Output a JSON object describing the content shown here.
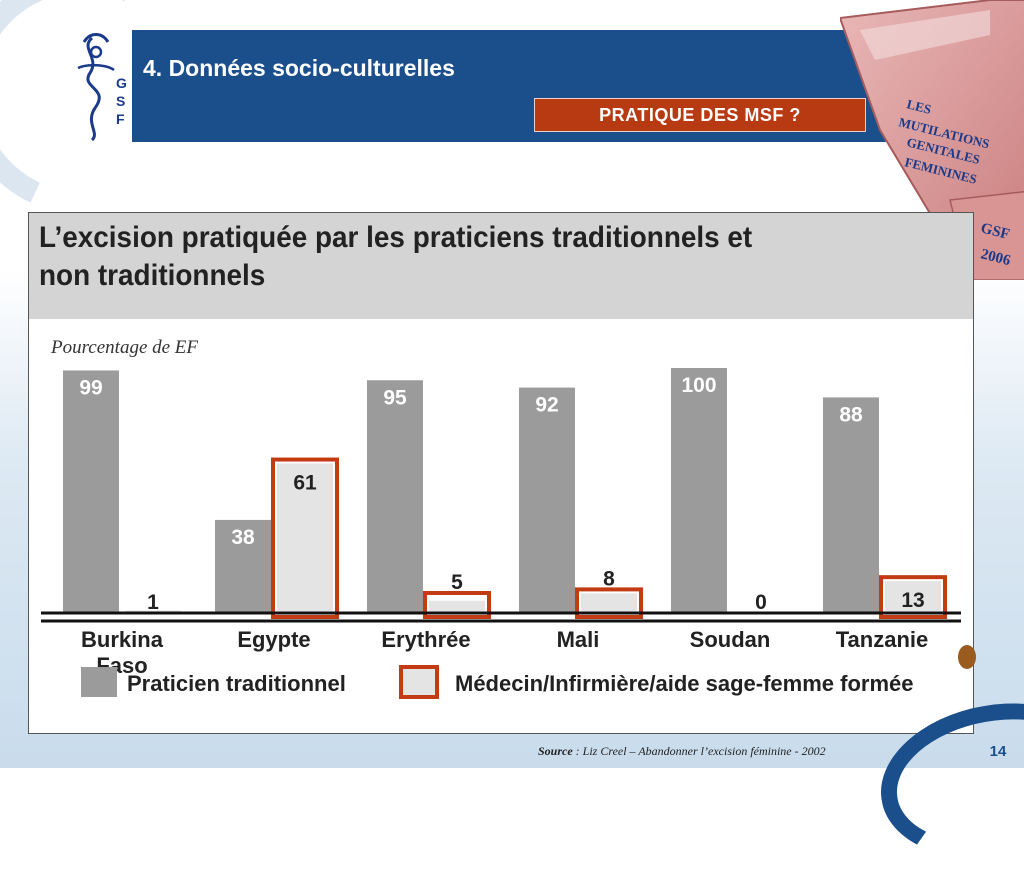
{
  "slide": {
    "title": "4. Données socio-culturelles",
    "question": "PRATIQUE DES MSF  ?",
    "page_number": "14",
    "source_label": "Source",
    "source_text": " : Liz Creel – Abandonner l’excision féminine - 2002"
  },
  "logo": {
    "letters": [
      "G",
      "S",
      "F"
    ]
  },
  "book": {
    "text_lines": [
      "LES",
      "MUTILATIONS",
      "GENITALES",
      "FEMININES"
    ],
    "spine_lines": [
      "GSF",
      "2006"
    ]
  },
  "colors": {
    "header_blue": "#1b4f8c",
    "question_red": "#b83a12",
    "bar_gray": "#9b9b9b",
    "bar_light": "#e4e4e4",
    "highlight_red": "#c23b12"
  },
  "chart_data": {
    "type": "bar",
    "title": "L’excision pratiquée par les praticiens traditionnels et non traditionnels",
    "title_lines": [
      "L’excision pratiquée par les praticiens traditionnels et",
      "non traditionnels"
    ],
    "ylabel": "Pourcentage de EF",
    "categories": [
      [
        "Burkina",
        "Faso"
      ],
      [
        "Egypte"
      ],
      [
        "Erythrée"
      ],
      [
        "Mali"
      ],
      [
        "Soudan"
      ],
      [
        "Tanzanie"
      ]
    ],
    "series": [
      {
        "name": "Praticien traditionnel",
        "values": [
          99,
          38,
          95,
          92,
          100,
          88
        ]
      },
      {
        "name": "Médecin/Infirmière/aide sage-femme formée",
        "values": [
          1,
          61,
          5,
          8,
          0,
          13
        ]
      }
    ],
    "ylim": [
      0,
      100
    ],
    "highlighted": [
      1,
      2,
      3,
      5
    ]
  }
}
